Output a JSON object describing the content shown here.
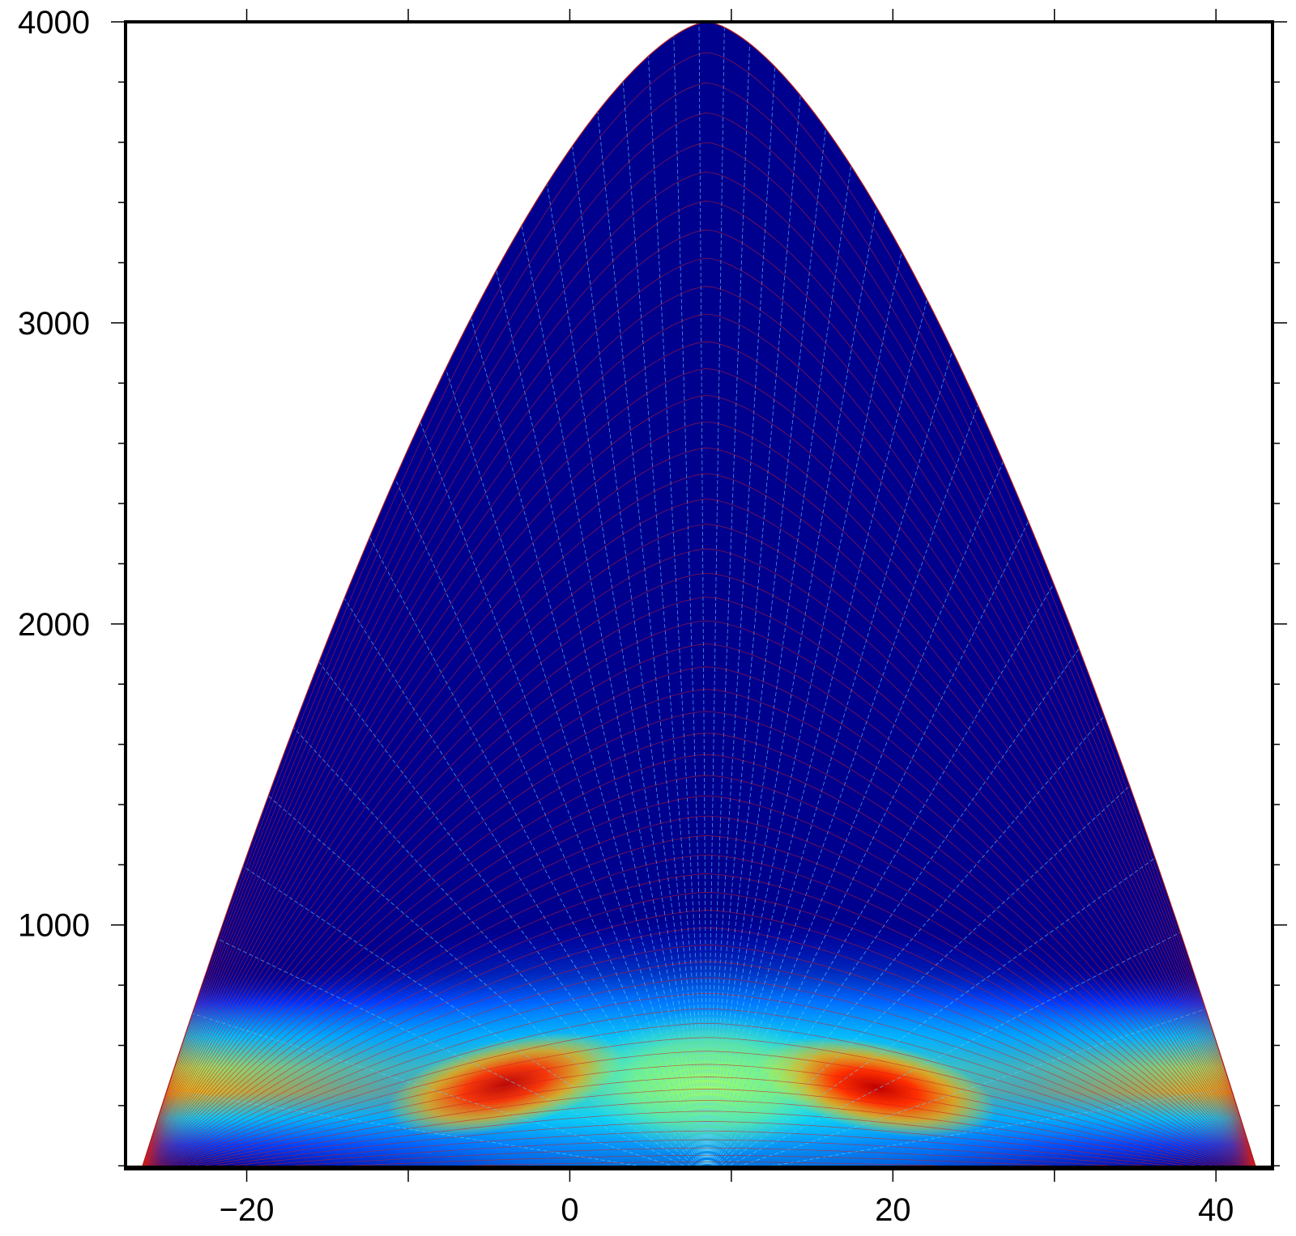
{
  "chart_data": {
    "type": "heatmap",
    "title": "",
    "xlabel": "",
    "ylabel": "",
    "xlim": [
      -27.5,
      43.5
    ],
    "ylim": [
      190,
      4000
    ],
    "x_ticks": [
      -20,
      0,
      20,
      40
    ],
    "x_minor_ticks": [
      -10,
      10,
      30
    ],
    "y_ticks": [
      1000,
      2000,
      3000,
      4000
    ],
    "y_minor_step": 200,
    "grid": false,
    "colormap": "jet",
    "colors": {
      "background": "#00008f",
      "grid_lines_radial": "#5fd0ff",
      "grid_lines_arcs": "#d02020",
      "frame": "#000000"
    },
    "domain_envelope": {
      "description_free": true,
      "apex": [
        8.5,
        4000
      ],
      "base_left": [
        -26.5,
        190
      ],
      "base_right": [
        42.5,
        190
      ]
    },
    "hotspots": [
      {
        "x": -4,
        "y": 470,
        "level": 0.95
      },
      {
        "x": 19,
        "y": 460,
        "level": 1.0
      },
      {
        "x": 8.5,
        "y": 470,
        "level": 0.55
      }
    ],
    "band": {
      "y_center": 380,
      "y_halfwidth": 230
    }
  }
}
